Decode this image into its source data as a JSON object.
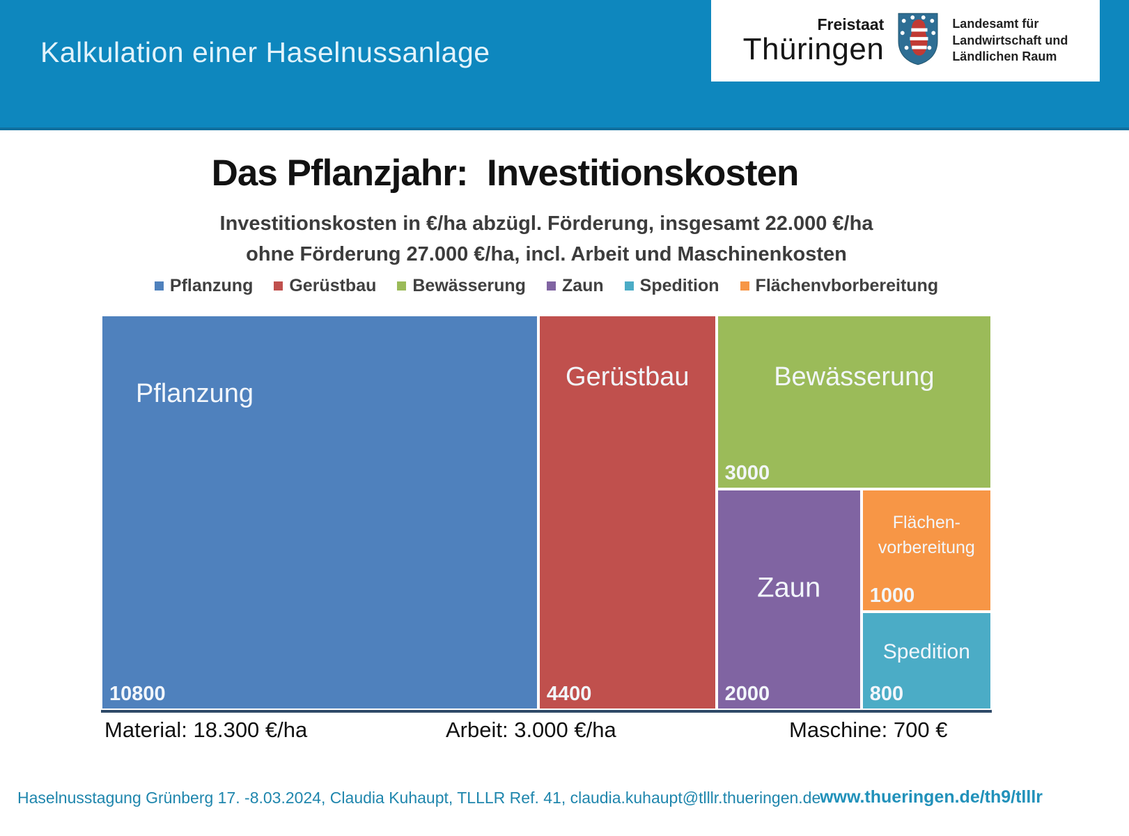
{
  "header": {
    "title": "Kalkulation einer Haselnussanlage",
    "logo": {
      "state_small": "Freistaat",
      "state_large": "Thüringen",
      "agency_lines": [
        "Landesamt für",
        "Landwirtschaft und",
        "Ländlichen Raum"
      ]
    }
  },
  "main": {
    "title": "Das Pflanzjahr:  Investitionskosten",
    "subtitle_line1": "Investitionskosten in €/ha abzügl. Förderung, insgesamt 22.000 €/ha",
    "subtitle_line2": "ohne Förderung 27.000 €/ha, incl. Arbeit und Maschinenkosten",
    "stats": [
      {
        "label": "Material: 18.300 €/ha"
      },
      {
        "label": "Arbeit: 3.000 €/ha"
      },
      {
        "label": "Maschine: 700 €"
      }
    ]
  },
  "footer": {
    "left": "Haselnusstagung Grünberg 17. -8.03.2024, Claudia Kuhaupt, TLLLR Ref. 41, claudia.kuhaupt@tlllr.thueringen.de",
    "right": "www.thueringen.de/th9/tlllr"
  },
  "chart_data": {
    "type": "treemap",
    "title": "Das Pflanzjahr: Investitionskosten",
    "unit": "€/ha",
    "total": 22000,
    "legend": [
      {
        "label": "Pflanzung",
        "color": "#4F81BD"
      },
      {
        "label": "Gerüstbau",
        "color": "#C0504D"
      },
      {
        "label": "Bewässerung",
        "color": "#9BBB59"
      },
      {
        "label": "Zaun",
        "color": "#8064A2"
      },
      {
        "label": "Spedition",
        "color": "#4BACC6"
      },
      {
        "label": "Flächenvborbereitung",
        "color": "#F79646"
      }
    ],
    "series": [
      {
        "id": "pflanzung",
        "name": "Pflanzung",
        "value": 10800,
        "color": "#4F81BD",
        "label_lines": [
          "Pflanzung"
        ],
        "label_pos": "top-left",
        "label_size": 38
      },
      {
        "id": "geruestbau",
        "name": "Gerüstbau",
        "value": 4400,
        "color": "#C0504D",
        "label_lines": [
          "Gerüstbau"
        ],
        "label_pos": "top-center",
        "label_size": 38
      },
      {
        "id": "bewaesserung",
        "name": "Bewässerung",
        "value": 3000,
        "color": "#9BBB59",
        "label_lines": [
          "Bewässerung"
        ],
        "label_pos": "top-center",
        "label_size": 38
      },
      {
        "id": "zaun",
        "name": "Zaun",
        "value": 2000,
        "color": "#8064A2",
        "label_lines": [
          "Zaun"
        ],
        "label_pos": "middle",
        "label_size": 40
      },
      {
        "id": "flaechenvorbereitung",
        "name": "Flächenvorbereitung",
        "value": 1000,
        "color": "#F79646",
        "label_lines": [
          "Flächen-",
          "vorbereitung"
        ],
        "label_pos": "middle",
        "label_size": 25
      },
      {
        "id": "spedition",
        "name": "Spedition",
        "value": 800,
        "color": "#4BACC6",
        "label_lines": [
          "Spedition"
        ],
        "label_pos": "middle",
        "label_size": 30
      }
    ],
    "layout": {
      "dir": "h",
      "children": [
        {
          "ref": 0
        },
        {
          "ref": 1
        },
        {
          "dir": "v",
          "children": [
            {
              "ref": 2
            },
            {
              "dir": "h",
              "children": [
                {
                  "ref": 3
                },
                {
                  "dir": "v",
                  "children": [
                    {
                      "ref": 4
                    },
                    {
                      "ref": 5
                    }
                  ]
                }
              ]
            }
          ]
        }
      ]
    }
  }
}
